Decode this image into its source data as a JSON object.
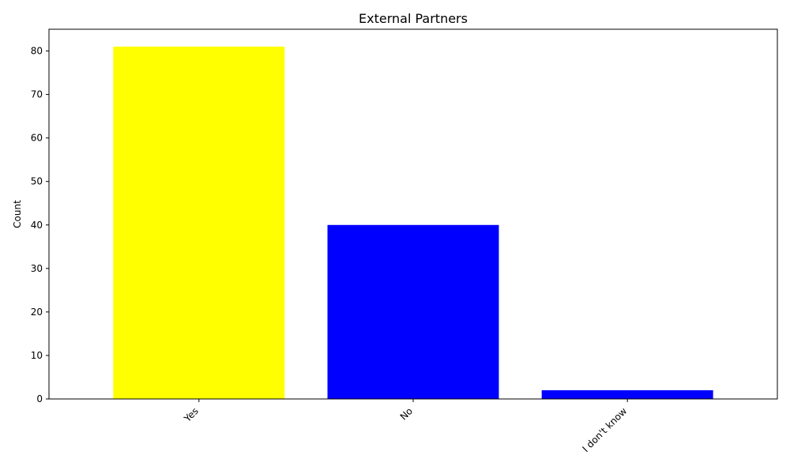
{
  "chart_data": {
    "type": "bar",
    "title": "External Partners",
    "xlabel": "",
    "ylabel": "Count",
    "categories": [
      "Yes",
      "No",
      "I don't know"
    ],
    "values": [
      81,
      40,
      2
    ],
    "colors": [
      "#ffff00",
      "#0000ff",
      "#0000ff"
    ],
    "ylim": [
      0,
      85
    ],
    "yticks": [
      0,
      10,
      20,
      30,
      40,
      50,
      60,
      70,
      80
    ],
    "grid": false,
    "legend": "none"
  }
}
